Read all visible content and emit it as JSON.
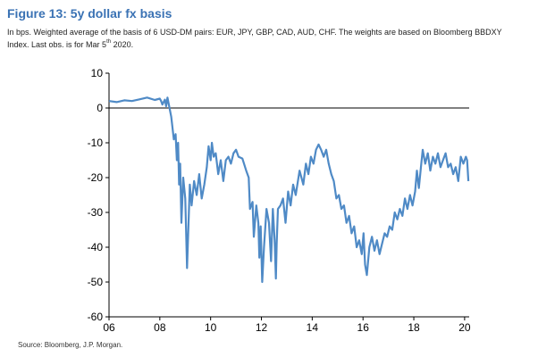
{
  "figure": {
    "title": "Figure 13: 5y dollar fx basis",
    "subtitle_line1": "In bps. Weighted average of the basis of 6 USD-DM pairs: EUR, JPY, GBP, CAD, AUD, CHF. The weights are based on Bloomberg BBDXY",
    "subtitle_line2_pre": "Index. Last obs. is for Mar 5",
    "subtitle_sup": "th",
    "subtitle_line2_post": " 2020.",
    "source": "Source: Bloomberg, J.P. Morgan."
  },
  "colors": {
    "title": "#3a72b4",
    "series": "#4f8ac6",
    "axis": "#000000"
  },
  "chart_data": {
    "type": "line",
    "title": "Figure 13: 5y dollar fx basis",
    "xlabel": "",
    "ylabel": "",
    "xlim": [
      2006,
      2020.18
    ],
    "ylim": [
      -60,
      10
    ],
    "xticks": [
      2006,
      2008,
      2010,
      2012,
      2014,
      2016,
      2018,
      2020
    ],
    "xtick_labels": [
      "06",
      "08",
      "10",
      "12",
      "14",
      "16",
      "18",
      "20"
    ],
    "yticks": [
      10,
      0,
      -10,
      -20,
      -30,
      -40,
      -50,
      -60
    ],
    "ytick_labels": [
      "10",
      "0",
      "-10",
      "-20",
      "-30",
      "-40",
      "-50",
      "-60"
    ],
    "grid": false,
    "legend": "none",
    "series": [
      {
        "x": [
          2006.0,
          2006.3,
          2006.6,
          2006.9,
          2007.2,
          2007.5,
          2007.8,
          2008.0,
          2008.05,
          2008.1,
          2008.2,
          2008.25,
          2008.3,
          2008.45,
          2008.55,
          2008.62,
          2008.67,
          2008.72,
          2008.76,
          2008.8,
          2008.85,
          2008.92,
          2009.0,
          2009.07,
          2009.12,
          2009.18,
          2009.25,
          2009.35,
          2009.45,
          2009.55,
          2009.65,
          2009.75,
          2009.85,
          2009.92,
          2010.0,
          2010.05,
          2010.12,
          2010.2,
          2010.3,
          2010.4,
          2010.5,
          2010.6,
          2010.7,
          2010.8,
          2010.9,
          2011.0,
          2011.1,
          2011.25,
          2011.4,
          2011.5,
          2011.55,
          2011.65,
          2011.7,
          2011.8,
          2011.88,
          2011.92,
          2011.97,
          2012.03,
          2012.1,
          2012.2,
          2012.3,
          2012.38,
          2012.45,
          2012.52,
          2012.57,
          2012.6,
          2012.65,
          2012.75,
          2012.85,
          2012.95,
          2013.05,
          2013.15,
          2013.25,
          2013.35,
          2013.5,
          2013.65,
          2013.75,
          2013.85,
          2013.95,
          2014.05,
          2014.15,
          2014.25,
          2014.35,
          2014.45,
          2014.55,
          2014.65,
          2014.75,
          2014.85,
          2014.95,
          2015.05,
          2015.15,
          2015.25,
          2015.35,
          2015.45,
          2015.55,
          2015.65,
          2015.75,
          2015.85,
          2015.95,
          2016.02,
          2016.08,
          2016.15,
          2016.25,
          2016.35,
          2016.45,
          2016.55,
          2016.65,
          2016.75,
          2016.85,
          2016.95,
          2017.05,
          2017.15,
          2017.25,
          2017.35,
          2017.45,
          2017.55,
          2017.65,
          2017.75,
          2017.85,
          2017.95,
          2018.05,
          2018.12,
          2018.2,
          2018.28,
          2018.35,
          2018.45,
          2018.55,
          2018.65,
          2018.75,
          2018.85,
          2018.95,
          2019.05,
          2019.15,
          2019.25,
          2019.35,
          2019.45,
          2019.55,
          2019.65,
          2019.75,
          2019.85,
          2019.95,
          2020.05,
          2020.1,
          2020.15
        ],
        "y": [
          2.0,
          1.7,
          2.2,
          2.0,
          2.5,
          3.0,
          2.3,
          2.7,
          2.0,
          1.0,
          2.4,
          0.5,
          3.0,
          -2.5,
          -9.0,
          -7.5,
          -15.0,
          -10.0,
          -22.0,
          -16.0,
          -33.0,
          -20.0,
          -26.0,
          -46.0,
          -35.0,
          -22.0,
          -28.0,
          -21.0,
          -25.0,
          -19.0,
          -26.0,
          -22.0,
          -17.0,
          -11.0,
          -15.0,
          -10.0,
          -14.0,
          -13.0,
          -19.0,
          -15.0,
          -21.0,
          -15.0,
          -14.0,
          -16.0,
          -13.0,
          -12.0,
          -14.0,
          -14.5,
          -18.0,
          -20.0,
          -29.0,
          -27.0,
          -37.0,
          -28.0,
          -33.0,
          -43.0,
          -34.0,
          -50.0,
          -40.0,
          -29.0,
          -33.0,
          -44.0,
          -29.0,
          -38.0,
          -49.0,
          -39.0,
          -29.0,
          -28.0,
          -26.0,
          -33.0,
          -24.0,
          -28.0,
          -22.0,
          -25.0,
          -18.0,
          -22.0,
          -16.0,
          -19.0,
          -14.0,
          -16.0,
          -12.0,
          -10.5,
          -12.0,
          -14.0,
          -12.0,
          -16.0,
          -19.0,
          -21.0,
          -26.0,
          -25.0,
          -29.0,
          -28.0,
          -33.0,
          -31.0,
          -36.0,
          -34.0,
          -40.0,
          -38.0,
          -42.0,
          -36.0,
          -45.0,
          -48.0,
          -40.0,
          -37.0,
          -41.0,
          -38.0,
          -42.0,
          -39.0,
          -36.0,
          -37.0,
          -34.0,
          -35.0,
          -30.0,
          -32.0,
          -29.0,
          -31.0,
          -26.0,
          -29.0,
          -25.0,
          -28.0,
          -24.0,
          -18.0,
          -23.0,
          -17.0,
          -12.0,
          -16.0,
          -13.0,
          -18.0,
          -14.0,
          -16.0,
          -13.0,
          -17.0,
          -15.0,
          -13.0,
          -17.0,
          -16.0,
          -19.0,
          -17.0,
          -21.0,
          -14.0,
          -16.0,
          -14.0,
          -15.0,
          -21.0
        ]
      }
    ]
  }
}
